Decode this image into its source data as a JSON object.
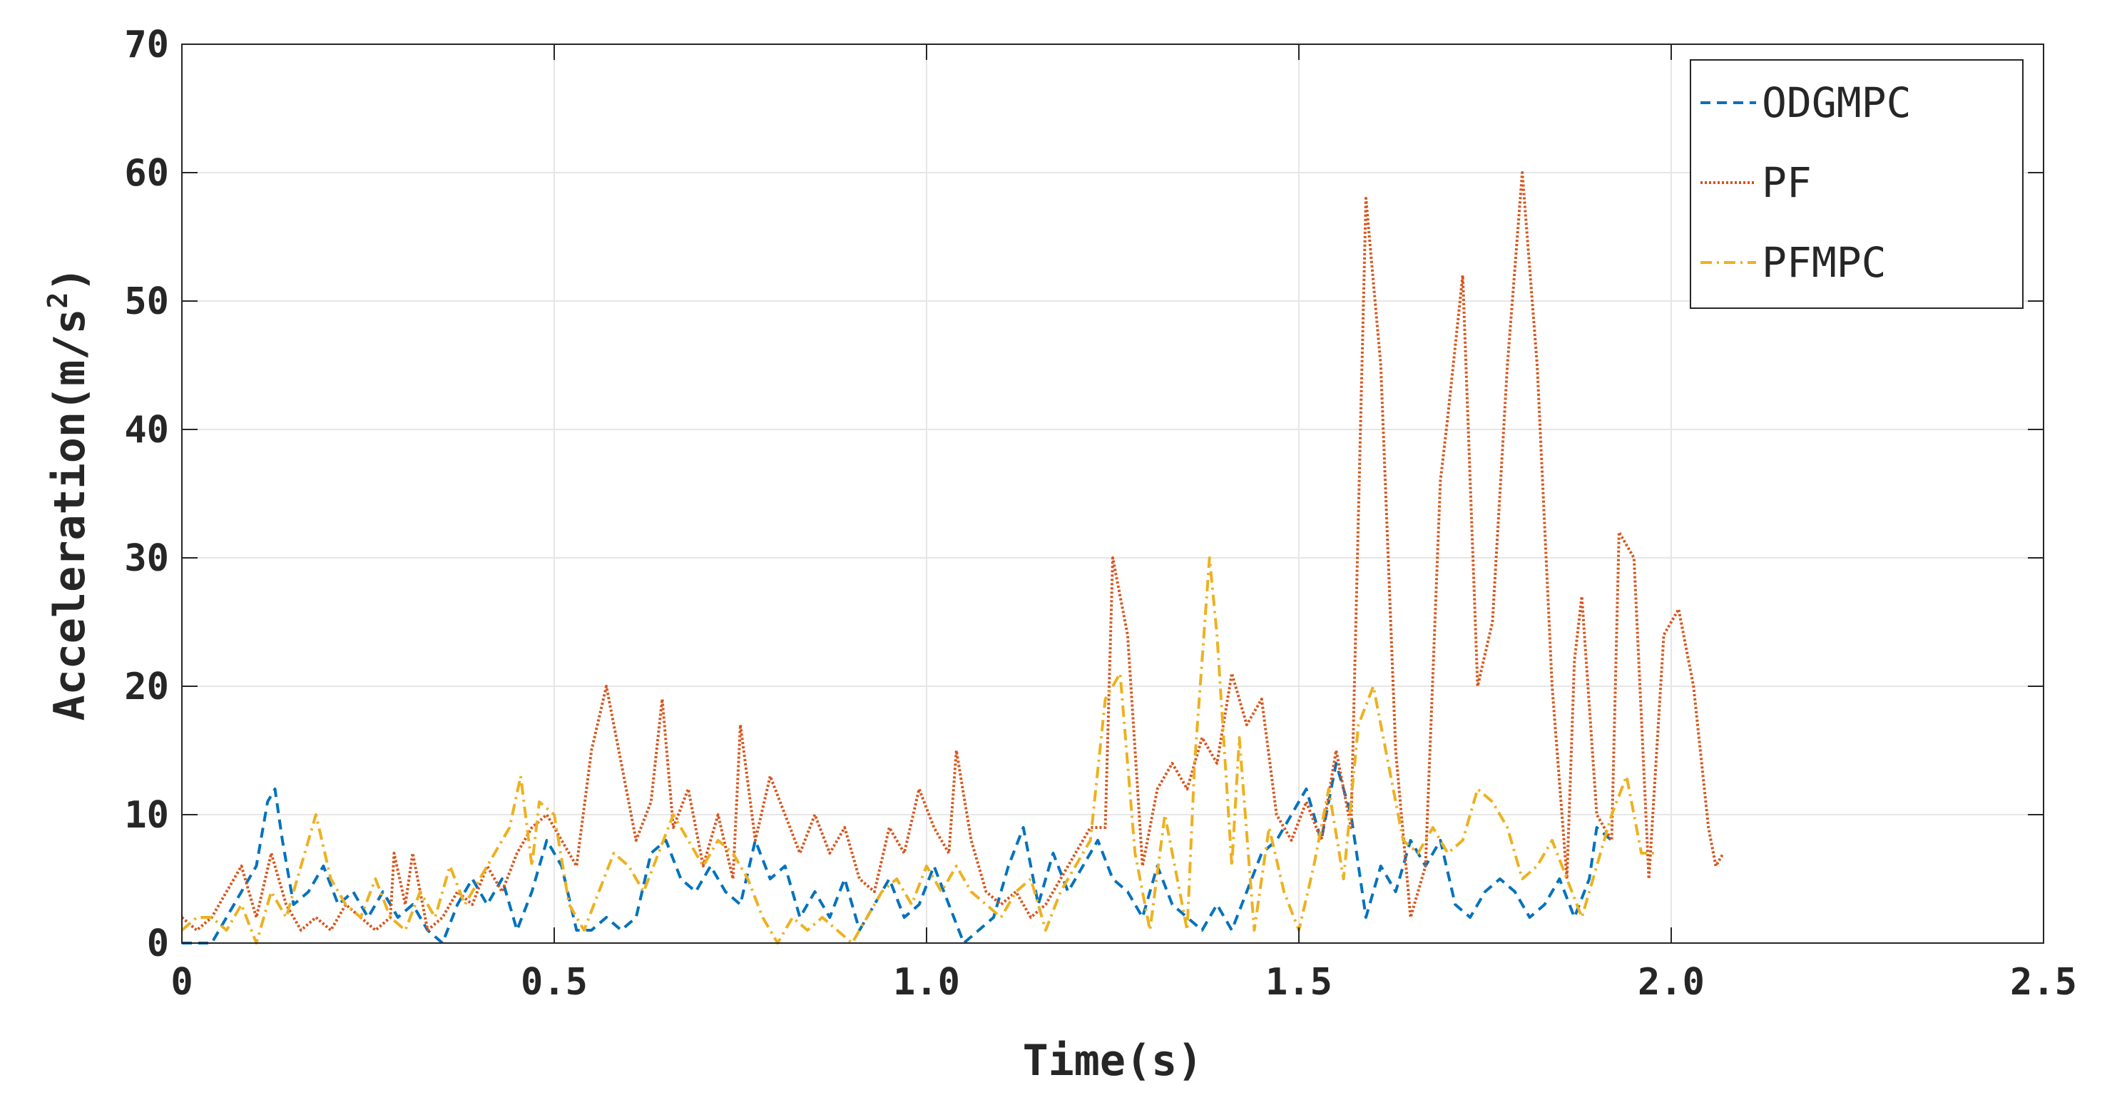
{
  "chart_data": {
    "type": "line",
    "title": "",
    "xlabel": "Time(s)",
    "ylabel_prefix": "Acceleration(m/s",
    "ylabel_superscript": "2",
    "ylabel_suffix": ")",
    "xlim": [
      0,
      2.5
    ],
    "ylim": [
      0,
      70
    ],
    "xticks": [
      0,
      0.5,
      1.0,
      1.5,
      2.0,
      2.5
    ],
    "xtick_labels": [
      "0",
      "0.5",
      "1.0",
      "1.5",
      "2.0",
      "2.5"
    ],
    "yticks": [
      0,
      10,
      20,
      30,
      40,
      50,
      60,
      70
    ],
    "ytick_labels": [
      "0",
      "10",
      "20",
      "30",
      "40",
      "50",
      "60",
      "70"
    ],
    "grid": true,
    "legend_position": "top-right",
    "series": [
      {
        "name": "ODGMPC",
        "color": "#0072BD",
        "style": "dashed",
        "points": [
          [
            0.0,
            0
          ],
          [
            0.04,
            0
          ],
          [
            0.06,
            2
          ],
          [
            0.08,
            4
          ],
          [
            0.1,
            6
          ],
          [
            0.115,
            11
          ],
          [
            0.125,
            12
          ],
          [
            0.135,
            8
          ],
          [
            0.15,
            3
          ],
          [
            0.17,
            4
          ],
          [
            0.19,
            6
          ],
          [
            0.21,
            3
          ],
          [
            0.23,
            4
          ],
          [
            0.25,
            2
          ],
          [
            0.27,
            4
          ],
          [
            0.29,
            2
          ],
          [
            0.31,
            3
          ],
          [
            0.33,
            1
          ],
          [
            0.35,
            0
          ],
          [
            0.37,
            3
          ],
          [
            0.39,
            5
          ],
          [
            0.41,
            3
          ],
          [
            0.43,
            5
          ],
          [
            0.45,
            1
          ],
          [
            0.47,
            4
          ],
          [
            0.49,
            8
          ],
          [
            0.51,
            6
          ],
          [
            0.53,
            1
          ],
          [
            0.55,
            1
          ],
          [
            0.57,
            2
          ],
          [
            0.59,
            1
          ],
          [
            0.61,
            2
          ],
          [
            0.63,
            7
          ],
          [
            0.65,
            8
          ],
          [
            0.67,
            5
          ],
          [
            0.69,
            4
          ],
          [
            0.71,
            6
          ],
          [
            0.73,
            4
          ],
          [
            0.75,
            3
          ],
          [
            0.77,
            8
          ],
          [
            0.79,
            5
          ],
          [
            0.81,
            6
          ],
          [
            0.83,
            2
          ],
          [
            0.85,
            4
          ],
          [
            0.87,
            2
          ],
          [
            0.89,
            5
          ],
          [
            0.91,
            1
          ],
          [
            0.93,
            3
          ],
          [
            0.95,
            5
          ],
          [
            0.97,
            2
          ],
          [
            0.99,
            3
          ],
          [
            1.01,
            6
          ],
          [
            1.03,
            3
          ],
          [
            1.05,
            0
          ],
          [
            1.07,
            1
          ],
          [
            1.09,
            2
          ],
          [
            1.11,
            6
          ],
          [
            1.13,
            9
          ],
          [
            1.15,
            3
          ],
          [
            1.17,
            7
          ],
          [
            1.19,
            4
          ],
          [
            1.21,
            6
          ],
          [
            1.23,
            8
          ],
          [
            1.25,
            5
          ],
          [
            1.27,
            4
          ],
          [
            1.29,
            2
          ],
          [
            1.31,
            6
          ],
          [
            1.33,
            3
          ],
          [
            1.35,
            2
          ],
          [
            1.37,
            1
          ],
          [
            1.39,
            3
          ],
          [
            1.41,
            1
          ],
          [
            1.43,
            4
          ],
          [
            1.45,
            7
          ],
          [
            1.47,
            8
          ],
          [
            1.49,
            10
          ],
          [
            1.51,
            12
          ],
          [
            1.53,
            8
          ],
          [
            1.55,
            14
          ],
          [
            1.57,
            10
          ],
          [
            1.59,
            2
          ],
          [
            1.61,
            6
          ],
          [
            1.63,
            4
          ],
          [
            1.65,
            8
          ],
          [
            1.67,
            6
          ],
          [
            1.69,
            8
          ],
          [
            1.71,
            3
          ],
          [
            1.73,
            2
          ],
          [
            1.75,
            4
          ],
          [
            1.77,
            5
          ],
          [
            1.79,
            4
          ],
          [
            1.81,
            2
          ],
          [
            1.83,
            3
          ],
          [
            1.85,
            5
          ],
          [
            1.87,
            2
          ],
          [
            1.89,
            5
          ],
          [
            1.9,
            9
          ],
          [
            1.92,
            8
          ]
        ]
      },
      {
        "name": "PF",
        "color": "#D95319",
        "style": "dotted",
        "points": [
          [
            0.0,
            2
          ],
          [
            0.02,
            1
          ],
          [
            0.04,
            2
          ],
          [
            0.06,
            4
          ],
          [
            0.08,
            6
          ],
          [
            0.1,
            2
          ],
          [
            0.12,
            7
          ],
          [
            0.14,
            3
          ],
          [
            0.16,
            1
          ],
          [
            0.18,
            2
          ],
          [
            0.2,
            1
          ],
          [
            0.22,
            3
          ],
          [
            0.24,
            2
          ],
          [
            0.26,
            1
          ],
          [
            0.28,
            2
          ],
          [
            0.285,
            7
          ],
          [
            0.3,
            3
          ],
          [
            0.31,
            7
          ],
          [
            0.33,
            1
          ],
          [
            0.35,
            2
          ],
          [
            0.37,
            4
          ],
          [
            0.39,
            3
          ],
          [
            0.41,
            6
          ],
          [
            0.43,
            4
          ],
          [
            0.45,
            7
          ],
          [
            0.47,
            9
          ],
          [
            0.49,
            10
          ],
          [
            0.51,
            8
          ],
          [
            0.53,
            6
          ],
          [
            0.55,
            15
          ],
          [
            0.57,
            20
          ],
          [
            0.59,
            14
          ],
          [
            0.61,
            8
          ],
          [
            0.63,
            11
          ],
          [
            0.645,
            19
          ],
          [
            0.66,
            9
          ],
          [
            0.68,
            12
          ],
          [
            0.7,
            6
          ],
          [
            0.72,
            10
          ],
          [
            0.74,
            5
          ],
          [
            0.75,
            17
          ],
          [
            0.77,
            8
          ],
          [
            0.79,
            13
          ],
          [
            0.81,
            10
          ],
          [
            0.83,
            7
          ],
          [
            0.85,
            10
          ],
          [
            0.87,
            7
          ],
          [
            0.89,
            9
          ],
          [
            0.91,
            5
          ],
          [
            0.93,
            4
          ],
          [
            0.95,
            9
          ],
          [
            0.97,
            7
          ],
          [
            0.99,
            12
          ],
          [
            1.01,
            9
          ],
          [
            1.03,
            7
          ],
          [
            1.04,
            15
          ],
          [
            1.06,
            8
          ],
          [
            1.08,
            4
          ],
          [
            1.1,
            3
          ],
          [
            1.12,
            4
          ],
          [
            1.14,
            2
          ],
          [
            1.16,
            3
          ],
          [
            1.18,
            5
          ],
          [
            1.2,
            7
          ],
          [
            1.22,
            9
          ],
          [
            1.24,
            9
          ],
          [
            1.25,
            30
          ],
          [
            1.27,
            24
          ],
          [
            1.29,
            6
          ],
          [
            1.31,
            12
          ],
          [
            1.33,
            14
          ],
          [
            1.35,
            12
          ],
          [
            1.37,
            16
          ],
          [
            1.39,
            14
          ],
          [
            1.41,
            21
          ],
          [
            1.43,
            17
          ],
          [
            1.45,
            19
          ],
          [
            1.47,
            10
          ],
          [
            1.49,
            8
          ],
          [
            1.51,
            11
          ],
          [
            1.53,
            8
          ],
          [
            1.55,
            15
          ],
          [
            1.57,
            9
          ],
          [
            1.59,
            58
          ],
          [
            1.61,
            45
          ],
          [
            1.63,
            15
          ],
          [
            1.65,
            2
          ],
          [
            1.67,
            6
          ],
          [
            1.69,
            36
          ],
          [
            1.7,
            41
          ],
          [
            1.72,
            52
          ],
          [
            1.74,
            20
          ],
          [
            1.76,
            25
          ],
          [
            1.78,
            45
          ],
          [
            1.8,
            60
          ],
          [
            1.82,
            45
          ],
          [
            1.84,
            20
          ],
          [
            1.86,
            5
          ],
          [
            1.87,
            22
          ],
          [
            1.88,
            27
          ],
          [
            1.9,
            10
          ],
          [
            1.92,
            8
          ],
          [
            1.93,
            32
          ],
          [
            1.95,
            30
          ],
          [
            1.97,
            5
          ],
          [
            1.99,
            24
          ],
          [
            2.01,
            26
          ],
          [
            2.03,
            20
          ],
          [
            2.05,
            9
          ],
          [
            2.06,
            6
          ],
          [
            2.07,
            7
          ]
        ]
      },
      {
        "name": "PFMPC",
        "color": "#EDB120",
        "style": "dashdot",
        "points": [
          [
            0.0,
            1
          ],
          [
            0.02,
            2
          ],
          [
            0.04,
            2
          ],
          [
            0.06,
            1
          ],
          [
            0.08,
            3
          ],
          [
            0.1,
            0
          ],
          [
            0.12,
            4
          ],
          [
            0.14,
            2
          ],
          [
            0.16,
            6
          ],
          [
            0.18,
            10
          ],
          [
            0.2,
            5
          ],
          [
            0.22,
            3
          ],
          [
            0.24,
            2
          ],
          [
            0.26,
            5
          ],
          [
            0.28,
            2
          ],
          [
            0.3,
            1
          ],
          [
            0.32,
            4
          ],
          [
            0.34,
            2
          ],
          [
            0.36,
            6
          ],
          [
            0.38,
            3
          ],
          [
            0.4,
            5
          ],
          [
            0.42,
            7
          ],
          [
            0.44,
            9
          ],
          [
            0.455,
            13
          ],
          [
            0.47,
            6
          ],
          [
            0.48,
            11
          ],
          [
            0.5,
            10
          ],
          [
            0.52,
            3
          ],
          [
            0.54,
            1
          ],
          [
            0.56,
            4
          ],
          [
            0.58,
            7
          ],
          [
            0.6,
            6
          ],
          [
            0.62,
            4
          ],
          [
            0.64,
            7
          ],
          [
            0.66,
            10
          ],
          [
            0.68,
            8
          ],
          [
            0.7,
            6
          ],
          [
            0.72,
            8
          ],
          [
            0.74,
            7
          ],
          [
            0.76,
            5
          ],
          [
            0.78,
            2
          ],
          [
            0.8,
            0
          ],
          [
            0.82,
            2
          ],
          [
            0.84,
            1
          ],
          [
            0.86,
            2
          ],
          [
            0.88,
            1
          ],
          [
            0.9,
            0
          ],
          [
            0.92,
            2
          ],
          [
            0.94,
            4
          ],
          [
            0.96,
            5
          ],
          [
            0.98,
            3
          ],
          [
            1.0,
            6
          ],
          [
            1.02,
            4
          ],
          [
            1.04,
            6
          ],
          [
            1.06,
            4
          ],
          [
            1.08,
            3
          ],
          [
            1.1,
            2
          ],
          [
            1.12,
            4
          ],
          [
            1.14,
            5
          ],
          [
            1.16,
            1
          ],
          [
            1.18,
            4
          ],
          [
            1.2,
            6
          ],
          [
            1.22,
            8
          ],
          [
            1.24,
            19
          ],
          [
            1.26,
            21
          ],
          [
            1.28,
            7
          ],
          [
            1.3,
            1
          ],
          [
            1.32,
            10
          ],
          [
            1.33,
            7
          ],
          [
            1.35,
            1
          ],
          [
            1.36,
            14
          ],
          [
            1.38,
            30
          ],
          [
            1.39,
            24
          ],
          [
            1.41,
            6
          ],
          [
            1.42,
            16
          ],
          [
            1.44,
            1
          ],
          [
            1.46,
            9
          ],
          [
            1.48,
            4
          ],
          [
            1.5,
            1
          ],
          [
            1.52,
            6
          ],
          [
            1.54,
            12
          ],
          [
            1.56,
            5
          ],
          [
            1.58,
            17
          ],
          [
            1.6,
            20
          ],
          [
            1.62,
            14
          ],
          [
            1.64,
            8
          ],
          [
            1.66,
            7
          ],
          [
            1.68,
            9
          ],
          [
            1.7,
            7
          ],
          [
            1.72,
            8
          ],
          [
            1.74,
            12
          ],
          [
            1.76,
            11
          ],
          [
            1.78,
            9
          ],
          [
            1.8,
            5
          ],
          [
            1.82,
            6
          ],
          [
            1.84,
            8
          ],
          [
            1.86,
            5
          ],
          [
            1.88,
            2
          ],
          [
            1.9,
            6
          ],
          [
            1.92,
            10
          ],
          [
            1.94,
            13
          ],
          [
            1.96,
            7
          ],
          [
            1.98,
            7
          ]
        ]
      }
    ]
  }
}
